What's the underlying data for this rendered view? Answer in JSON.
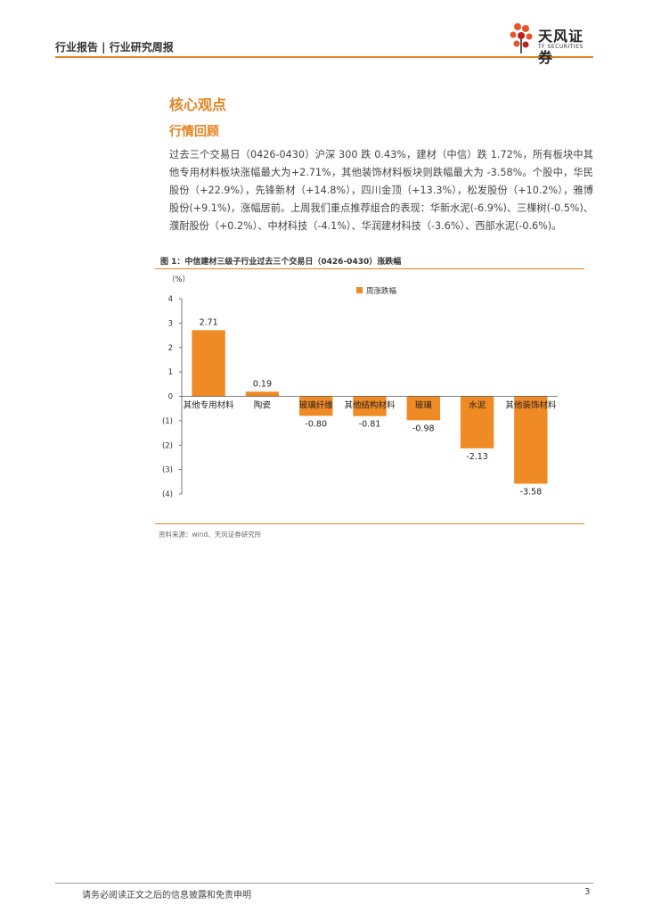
{
  "header": {
    "title": "行业报告 | 行业研究周报",
    "logo_cn": "天风证券",
    "logo_en": "TF SECURITIES"
  },
  "section": {
    "heading": "核心观点",
    "subheading": "行情回顾",
    "paragraph": "过去三个交易日（0426-0430）沪深 300 跌 0.43%，建材（中信）跌 1.72%，所有板块中其他专用材料板块涨幅最大为+2.71%，其他装饰材料板块则跌幅最大为 -3.58%。个股中，华民股份（+22.9%），先锋新材（+14.8%），四川金顶（+13.3%），松发股份（+10.2%），雅博股份(+9.1%)，涨幅居前。上周我们重点推荐组合的表现：华新水泥(-6.9%)、三棵树(-0.5%)、濮耐股份（+0.2%）、中材科技（-4.1%）、华润建材科技（-3.6%）、西部水泥(-0.6%)。"
  },
  "figure": {
    "title": "图 1：中信建材三级子行业过去三个交易日（0426-0430）涨跌幅",
    "source": "资料来源：wind、天风证券研究所"
  },
  "chart_data": {
    "type": "bar",
    "ylabel": "（%）",
    "categories": [
      "其他专用材料",
      "陶瓷",
      "玻璃纤维",
      "其他结构材料",
      "玻璃",
      "水泥",
      "其他装饰材料"
    ],
    "series": [
      {
        "name": "周涨跌幅",
        "values": [
          2.71,
          0.19,
          -0.8,
          -0.81,
          -0.98,
          -2.13,
          -3.58
        ]
      }
    ],
    "data_labels": [
      "2.71",
      "0.19",
      "-0.80",
      "-0.81",
      "-0.98",
      "-2.13",
      "-3.58"
    ],
    "yticks": [
      {
        "value": 4,
        "label": "4"
      },
      {
        "value": 3,
        "label": "3"
      },
      {
        "value": 2,
        "label": "2"
      },
      {
        "value": 1,
        "label": "1"
      },
      {
        "value": 0,
        "label": "0"
      },
      {
        "value": -1,
        "label": "(1)"
      },
      {
        "value": -2,
        "label": "(2)"
      },
      {
        "value": -3,
        "label": "(3)"
      },
      {
        "value": -4,
        "label": "(4)"
      }
    ],
    "ylim": [
      -4,
      4
    ],
    "bar_color": "#f08a24",
    "legend_position": "top",
    "grid": false
  },
  "footer": {
    "disclaimer": "请务必阅读正文之后的信息披露和免责申明",
    "page": "3"
  }
}
